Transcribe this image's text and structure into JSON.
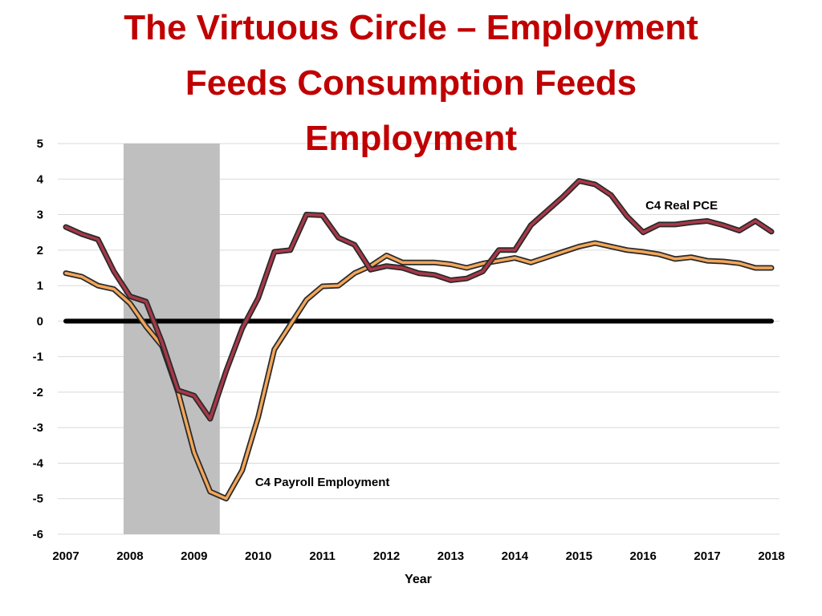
{
  "slide": {
    "title_lines": [
      "The Virtuous Circle – Employment",
      "Feeds Consumption Feeds",
      "Employment"
    ]
  },
  "chart_data": {
    "type": "line",
    "title": "The Virtuous Circle – Employment Feeds Consumption Feeds Employment",
    "xlabel": "Year",
    "ylabel": "",
    "xlim": [
      2007,
      2018
    ],
    "ylim": [
      -6,
      5
    ],
    "x_ticks": [
      "2007",
      "2008",
      "2009",
      "2010",
      "2011",
      "2012",
      "2013",
      "2014",
      "2015",
      "2016",
      "2017",
      "2018"
    ],
    "y_ticks": [
      "5",
      "4",
      "3",
      "2",
      "1",
      "0",
      "-1",
      "-2",
      "-3",
      "-4",
      "-5",
      "-6"
    ],
    "grid": "horizontal",
    "recession_shading": [
      2007.9,
      2009.4
    ],
    "zero_line": 0,
    "series": [
      {
        "name": "C4 Real PCE",
        "color": "#a83848",
        "x": [
          2007.0,
          2007.25,
          2007.5,
          2007.75,
          2008.0,
          2008.25,
          2008.5,
          2008.75,
          2009.0,
          2009.25,
          2009.5,
          2009.75,
          2010.0,
          2010.25,
          2010.5,
          2010.75,
          2011.0,
          2011.25,
          2011.5,
          2011.75,
          2012.0,
          2012.25,
          2012.5,
          2012.75,
          2013.0,
          2013.25,
          2013.5,
          2013.75,
          2014.0,
          2014.25,
          2014.5,
          2014.75,
          2015.0,
          2015.25,
          2015.5,
          2015.75,
          2016.0,
          2016.25,
          2016.5,
          2016.75,
          2017.0,
          2017.25,
          2017.5,
          2017.75,
          2018.0
        ],
        "y": [
          2.65,
          2.45,
          2.3,
          1.4,
          0.7,
          0.55,
          -0.6,
          -1.95,
          -2.1,
          -2.75,
          -1.4,
          -0.2,
          0.65,
          1.95,
          2.0,
          3.0,
          2.98,
          2.35,
          2.15,
          1.45,
          1.55,
          1.5,
          1.35,
          1.3,
          1.15,
          1.2,
          1.4,
          2.0,
          2.0,
          2.7,
          3.1,
          3.5,
          3.95,
          3.85,
          3.55,
          2.95,
          2.5,
          2.72,
          2.72,
          2.78,
          2.82,
          2.7,
          2.55,
          2.82,
          2.52
        ]
      },
      {
        "name": "C4 Payroll Employment",
        "color": "#f2a65a",
        "x": [
          2007.0,
          2007.25,
          2007.5,
          2007.75,
          2008.0,
          2008.25,
          2008.5,
          2008.75,
          2009.0,
          2009.25,
          2009.5,
          2009.75,
          2010.0,
          2010.25,
          2010.5,
          2010.75,
          2011.0,
          2011.25,
          2011.5,
          2011.75,
          2012.0,
          2012.25,
          2012.5,
          2012.75,
          2013.0,
          2013.25,
          2013.5,
          2013.75,
          2014.0,
          2014.25,
          2014.5,
          2014.75,
          2015.0,
          2015.25,
          2015.5,
          2015.75,
          2016.0,
          2016.25,
          2016.5,
          2016.75,
          2017.0,
          2017.25,
          2017.5,
          2017.75,
          2018.0
        ],
        "y": [
          1.35,
          1.25,
          1.0,
          0.9,
          0.5,
          -0.15,
          -0.7,
          -2.0,
          -3.7,
          -4.8,
          -5.0,
          -4.2,
          -2.7,
          -0.8,
          -0.1,
          0.6,
          0.98,
          1.0,
          1.35,
          1.55,
          1.85,
          1.65,
          1.65,
          1.65,
          1.6,
          1.5,
          1.62,
          1.7,
          1.78,
          1.65,
          1.8,
          1.95,
          2.1,
          2.2,
          2.1,
          2.0,
          1.95,
          1.88,
          1.75,
          1.8,
          1.7,
          1.68,
          1.63,
          1.5,
          1.5
        ]
      }
    ],
    "annotations": [
      {
        "text": "C4 Real PCE",
        "x": 2016.6,
        "y": 3.15
      },
      {
        "text": "C4 Payroll Employment",
        "x": 2011.0,
        "y": -4.65
      }
    ]
  }
}
